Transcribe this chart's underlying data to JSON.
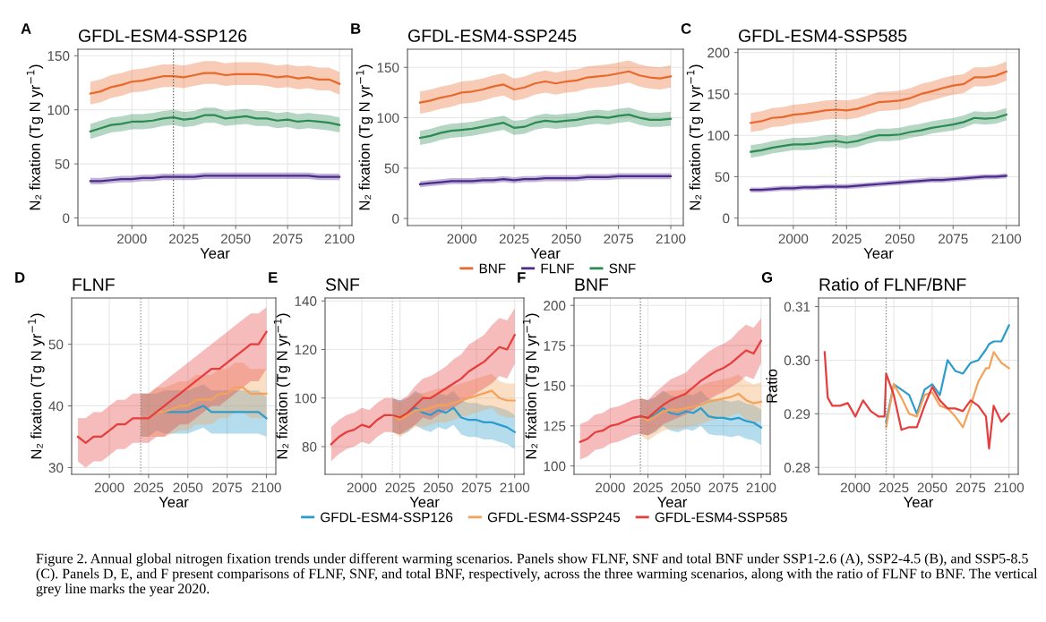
{
  "chart_data": [
    {
      "type": "line",
      "title": "GFDL-ESM4-SSP126",
      "xlabel": "Year",
      "ylabel": "N₂ fixation (Tg N yr$^{−1}$)",
      "annotations": [
        "A"
      ],
      "grid": true,
      "xlim": [
        1974,
        2106
      ],
      "xticks": [
        2000,
        2025,
        2050,
        2075,
        2100
      ],
      "ylim": [
        -7,
        156
      ],
      "yticks": [
        0,
        50,
        100,
        150
      ],
      "ref_lines": [
        {
          "axis": "x",
          "value": 2020,
          "color": "#555555",
          "line_style": "dotted"
        }
      ],
      "x": [
        1980,
        1985,
        1990,
        1995,
        2000,
        2005,
        2010,
        2015,
        2020,
        2025,
        2030,
        2035,
        2040,
        2045,
        2050,
        2055,
        2060,
        2065,
        2070,
        2075,
        2080,
        2085,
        2090,
        2095,
        2100
      ],
      "series": [
        {
          "color": "#e8692c",
          "values": [
            115,
            117,
            121,
            123,
            126,
            127,
            129,
            131,
            131,
            130,
            132,
            134,
            134,
            132,
            133,
            133,
            133,
            132,
            130,
            131,
            129,
            130,
            128,
            128,
            124
          ],
          "lower": [
            105,
            107,
            111,
            113,
            116,
            117,
            119,
            121,
            121,
            120,
            122,
            124,
            124,
            122,
            123,
            123,
            123,
            122,
            120,
            121,
            119,
            120,
            118,
            118,
            114
          ],
          "upper": [
            126,
            128,
            132,
            134,
            137,
            138,
            140,
            142,
            142,
            141,
            143,
            145,
            145,
            143,
            144,
            144,
            144,
            143,
            141,
            142,
            140,
            141,
            139,
            139,
            135
          ]
        },
        {
          "color": "#4b2a8c",
          "values": [
            34,
            34,
            35,
            36,
            36,
            37,
            37,
            38,
            38,
            38,
            38,
            39,
            39,
            39,
            39,
            39,
            39,
            39,
            39,
            39,
            39,
            39,
            38,
            38,
            38
          ],
          "lower": [
            31,
            31,
            32,
            33,
            33,
            34,
            34,
            35,
            35,
            35,
            35,
            36,
            36,
            36,
            36,
            36,
            36,
            36,
            36,
            36,
            36,
            36,
            35,
            35,
            35
          ],
          "upper": [
            37,
            37,
            38,
            39,
            39,
            40,
            40,
            41,
            41,
            41,
            41,
            42,
            42,
            42,
            42,
            42,
            42,
            42,
            42,
            42,
            42,
            42,
            41,
            41,
            41
          ]
        },
        {
          "color": "#2a8a50",
          "values": [
            80,
            83,
            86,
            87,
            89,
            89,
            90,
            92,
            93,
            91,
            92,
            95,
            95,
            92,
            93,
            94,
            92,
            92,
            90,
            91,
            89,
            90,
            89,
            88,
            86
          ],
          "lower": [
            73,
            76,
            79,
            80,
            82,
            82,
            83,
            85,
            86,
            84,
            85,
            88,
            88,
            85,
            86,
            87,
            85,
            85,
            83,
            84,
            82,
            83,
            82,
            81,
            79
          ],
          "upper": [
            87,
            90,
            93,
            94,
            96,
            96,
            97,
            99,
            100,
            98,
            99,
            102,
            102,
            99,
            100,
            101,
            99,
            99,
            97,
            98,
            96,
            97,
            96,
            95,
            93
          ]
        }
      ]
    },
    {
      "type": "line",
      "title": "GFDL-ESM4-SSP245",
      "xlabel": "Year",
      "ylabel": "N₂ fixation (Tg N yr$^{−1}$)",
      "annotations": [
        "B"
      ],
      "grid": true,
      "legend": "bottom",
      "xlim": [
        1974,
        2106
      ],
      "xticks": [
        2000,
        2025,
        2050,
        2075,
        2100
      ],
      "ylim": [
        -7,
        168
      ],
      "yticks": [
        0,
        50,
        100,
        150
      ],
      "x": [
        1980,
        1985,
        1990,
        1995,
        2000,
        2005,
        2010,
        2015,
        2020,
        2025,
        2030,
        2035,
        2040,
        2045,
        2050,
        2055,
        2060,
        2065,
        2070,
        2075,
        2080,
        2085,
        2090,
        2095,
        2100
      ],
      "series": [
        {
          "name": "BNF",
          "color": "#e8692c",
          "values": [
            115,
            117,
            120,
            122,
            125,
            126,
            128,
            131,
            133,
            128,
            130,
            134,
            136,
            134,
            136,
            137,
            140,
            141,
            142,
            144,
            146,
            142,
            140,
            139,
            141
          ],
          "lower": [
            104,
            106,
            109,
            111,
            114,
            115,
            117,
            120,
            122,
            117,
            119,
            123,
            125,
            123,
            125,
            126,
            129,
            130,
            131,
            133,
            135,
            131,
            129,
            128,
            130
          ],
          "upper": [
            126,
            128,
            131,
            133,
            136,
            137,
            139,
            142,
            144,
            139,
            141,
            145,
            147,
            145,
            147,
            148,
            151,
            152,
            153,
            155,
            157,
            153,
            151,
            150,
            152
          ]
        },
        {
          "name": "FLNF",
          "color": "#4b2a8c",
          "values": [
            34,
            35,
            36,
            37,
            37,
            37,
            38,
            38,
            39,
            38,
            39,
            39,
            40,
            40,
            40,
            40,
            41,
            41,
            41,
            42,
            42,
            42,
            42,
            42,
            42
          ],
          "lower": [
            31,
            32,
            33,
            34,
            34,
            34,
            35,
            35,
            36,
            35,
            36,
            36,
            37,
            37,
            37,
            37,
            38,
            38,
            38,
            39,
            39,
            39,
            39,
            39,
            39
          ],
          "upper": [
            37,
            38,
            39,
            40,
            40,
            40,
            41,
            41,
            42,
            41,
            42,
            42,
            43,
            43,
            43,
            43,
            44,
            44,
            44,
            45,
            45,
            45,
            45,
            45,
            45
          ]
        },
        {
          "name": "SNF",
          "color": "#2a8a50",
          "values": [
            80,
            82,
            85,
            87,
            88,
            89,
            91,
            93,
            95,
            90,
            91,
            95,
            97,
            96,
            97,
            98,
            100,
            101,
            100,
            102,
            103,
            100,
            98,
            98,
            99
          ],
          "lower": [
            73,
            75,
            78,
            80,
            81,
            82,
            84,
            86,
            88,
            83,
            84,
            88,
            90,
            89,
            90,
            91,
            93,
            94,
            93,
            95,
            96,
            93,
            91,
            91,
            92
          ],
          "upper": [
            87,
            89,
            92,
            94,
            95,
            96,
            98,
            100,
            102,
            97,
            98,
            102,
            104,
            103,
            104,
            105,
            107,
            108,
            107,
            109,
            110,
            107,
            105,
            105,
            106
          ]
        }
      ]
    },
    {
      "type": "line",
      "title": "GFDL-ESM4-SSP585",
      "xlabel": "Year",
      "ylabel": "N₂ fixation (Tg N yr$^{−1}$)",
      "annotations": [
        "C"
      ],
      "grid": true,
      "xlim": [
        1974,
        2106
      ],
      "xticks": [
        2000,
        2025,
        2050,
        2075,
        2100
      ],
      "ylim": [
        -9,
        204
      ],
      "yticks": [
        0,
        50,
        100,
        150,
        200
      ],
      "ref_lines": [
        {
          "axis": "x",
          "value": 2020,
          "color": "#555555",
          "line_style": "dotted"
        }
      ],
      "x": [
        1980,
        1985,
        1990,
        1995,
        2000,
        2005,
        2010,
        2015,
        2020,
        2025,
        2030,
        2035,
        2040,
        2045,
        2050,
        2055,
        2060,
        2065,
        2070,
        2075,
        2080,
        2085,
        2090,
        2095,
        2100
      ],
      "series": [
        {
          "color": "#e8692c",
          "values": [
            115,
            117,
            121,
            122,
            125,
            126,
            128,
            130,
            131,
            130,
            132,
            136,
            140,
            141,
            142,
            145,
            150,
            153,
            157,
            160,
            162,
            170,
            170,
            172,
            177
          ],
          "lower": [
            104,
            106,
            110,
            111,
            114,
            115,
            117,
            119,
            120,
            119,
            121,
            125,
            129,
            130,
            131,
            134,
            139,
            142,
            146,
            149,
            151,
            159,
            159,
            161,
            166
          ],
          "upper": [
            127,
            129,
            133,
            134,
            137,
            138,
            140,
            142,
            143,
            142,
            144,
            148,
            152,
            153,
            154,
            157,
            162,
            165,
            169,
            172,
            174,
            182,
            182,
            184,
            189
          ]
        },
        {
          "color": "#4b2a8c",
          "values": [
            34,
            34,
            35,
            36,
            36,
            37,
            37,
            38,
            38,
            38,
            39,
            40,
            41,
            42,
            43,
            44,
            45,
            46,
            46,
            47,
            48,
            49,
            50,
            50,
            51
          ],
          "lower": [
            31,
            31,
            32,
            33,
            33,
            34,
            34,
            35,
            35,
            35,
            36,
            37,
            38,
            39,
            40,
            41,
            42,
            43,
            43,
            44,
            45,
            46,
            47,
            47,
            48
          ],
          "upper": [
            37,
            37,
            38,
            39,
            39,
            40,
            40,
            41,
            41,
            41,
            42,
            43,
            44,
            45,
            46,
            47,
            48,
            49,
            49,
            50,
            51,
            52,
            53,
            53,
            54
          ]
        },
        {
          "color": "#2a8a50",
          "values": [
            80,
            82,
            85,
            87,
            89,
            89,
            90,
            92,
            93,
            91,
            93,
            97,
            100,
            100,
            101,
            104,
            106,
            109,
            111,
            113,
            116,
            121,
            120,
            121,
            125
          ],
          "lower": [
            73,
            75,
            78,
            80,
            82,
            82,
            83,
            85,
            86,
            84,
            86,
            90,
            93,
            93,
            94,
            97,
            99,
            102,
            104,
            106,
            109,
            114,
            113,
            114,
            118
          ],
          "upper": [
            88,
            90,
            93,
            95,
            97,
            97,
            98,
            100,
            101,
            99,
            101,
            105,
            108,
            108,
            109,
            112,
            114,
            117,
            119,
            121,
            124,
            129,
            128,
            129,
            133
          ]
        }
      ]
    },
    {
      "type": "line",
      "title": "FLNF",
      "xlabel": "Year",
      "ylabel": "N₂ fixation (Tg N yr$^{−1}$)",
      "annotations": [
        "D"
      ],
      "grid": true,
      "xlim": [
        1976,
        2106
      ],
      "xticks": [
        2000,
        2025,
        2050,
        2075,
        2100
      ],
      "ylim": [
        28.9,
        57.5
      ],
      "yticks": [
        30,
        40,
        50
      ],
      "ref_lines": [
        {
          "axis": "x",
          "value": 2020,
          "color": "#888888",
          "line_style": "dotted"
        }
      ],
      "x": [
        1980,
        1985,
        1990,
        1995,
        2000,
        2005,
        2010,
        2015,
        2020,
        2025,
        2030,
        2035,
        2040,
        2045,
        2050,
        2055,
        2060,
        2065,
        2070,
        2075,
        2080,
        2085,
        2090,
        2095,
        2100
      ],
      "series": [
        {
          "color": "#2b9ccc",
          "values": [
            null,
            null,
            null,
            null,
            null,
            null,
            null,
            null,
            null,
            null,
            null,
            39,
            39,
            39,
            39,
            39.5,
            40,
            39,
            39,
            39,
            39,
            39,
            39,
            39,
            38
          ],
          "lower": [
            null,
            null,
            null,
            null,
            null,
            null,
            null,
            null,
            35,
            35,
            36,
            35.5,
            35.5,
            35.5,
            35.5,
            36,
            36.5,
            35.5,
            35.5,
            35.5,
            35.5,
            35.5,
            35.5,
            35.5,
            35
          ],
          "upper": [
            null,
            null,
            null,
            null,
            null,
            null,
            null,
            null,
            42,
            42,
            42,
            42.5,
            42.5,
            42.5,
            42.5,
            43,
            43.5,
            42.5,
            42.5,
            42.5,
            42.5,
            42.5,
            42.5,
            42.5,
            41.5
          ]
        },
        {
          "color": "#f4a259",
          "values": [
            null,
            null,
            null,
            null,
            null,
            null,
            null,
            null,
            38,
            38,
            39,
            39,
            39.5,
            40,
            40,
            41,
            41,
            41,
            42,
            42,
            43,
            43,
            42,
            42,
            42
          ],
          "lower": [
            null,
            null,
            null,
            null,
            null,
            null,
            null,
            null,
            35,
            35,
            35,
            35,
            35.5,
            36,
            36,
            37,
            37,
            37,
            38,
            38,
            39,
            39,
            38,
            38,
            38
          ],
          "upper": [
            null,
            null,
            null,
            null,
            null,
            null,
            null,
            null,
            42,
            42,
            43,
            43,
            43.5,
            44,
            44,
            45,
            45,
            45,
            46,
            46,
            47,
            47,
            46,
            46,
            46
          ]
        },
        {
          "color": "#e63d3d",
          "values": [
            35,
            34,
            35,
            35,
            36,
            37,
            37,
            38,
            38,
            38,
            39,
            40,
            41,
            42,
            43,
            44,
            45,
            46,
            46,
            47,
            48,
            49,
            50,
            50,
            52
          ],
          "lower": [
            31,
            30,
            31,
            31,
            32,
            33,
            33,
            34,
            34,
            34,
            35,
            35,
            36,
            37,
            37,
            38,
            39,
            40,
            40,
            41,
            42,
            43,
            44,
            44,
            46
          ],
          "upper": [
            38,
            38,
            39,
            39,
            40,
            41,
            41,
            42,
            42,
            42,
            43,
            44,
            45,
            46,
            47,
            48,
            49,
            50,
            51,
            52,
            53,
            54,
            55,
            55,
            56
          ]
        }
      ]
    },
    {
      "type": "line",
      "title": "SNF",
      "xlabel": "Year",
      "ylabel": "N₂ fixation (Tg N yr$^{−1}$)",
      "annotations": [
        "E"
      ],
      "grid": true,
      "legend": "bottom",
      "xlim": [
        1976,
        2106
      ],
      "xticks": [
        2000,
        2025,
        2050,
        2075,
        2100
      ],
      "ylim": [
        68.6,
        141.2
      ],
      "yticks": [
        80,
        100,
        120,
        140
      ],
      "ref_lines": [
        {
          "axis": "x",
          "value": 2020,
          "color": "#bbbbbb",
          "line_style": "dotted"
        }
      ],
      "x": [
        1980,
        1985,
        1990,
        1995,
        2000,
        2005,
        2010,
        2015,
        2020,
        2025,
        2030,
        2035,
        2040,
        2045,
        2050,
        2055,
        2060,
        2065,
        2070,
        2075,
        2080,
        2085,
        2090,
        2095,
        2100
      ],
      "series": [
        {
          "name": "GFDL-ESM4-SSP126",
          "color": "#2b9ccc",
          "values": [
            null,
            null,
            null,
            null,
            null,
            null,
            null,
            null,
            null,
            null,
            93,
            96,
            94,
            93,
            95,
            94,
            96,
            92,
            91,
            91,
            90,
            90,
            89,
            88,
            86
          ],
          "lower": [
            null,
            null,
            null,
            null,
            null,
            null,
            null,
            null,
            86,
            85,
            86,
            89,
            87,
            86,
            88,
            87,
            89,
            85,
            84,
            84,
            83,
            83,
            82,
            81,
            79
          ],
          "upper": [
            null,
            null,
            null,
            null,
            null,
            null,
            null,
            null,
            100,
            99,
            100,
            103,
            101,
            100,
            102,
            101,
            103,
            99,
            98,
            98,
            97,
            97,
            96,
            95,
            93
          ]
        },
        {
          "name": "GFDL-ESM4-SSP245",
          "color": "#f4a259",
          "values": [
            null,
            null,
            null,
            null,
            null,
            null,
            null,
            null,
            93,
            91,
            93,
            95,
            95,
            96,
            97,
            97,
            98,
            99,
            100,
            101,
            102,
            103,
            100,
            99,
            99
          ],
          "lower": [
            null,
            null,
            null,
            null,
            null,
            null,
            null,
            null,
            86,
            84,
            86,
            88,
            88,
            89,
            90,
            90,
            91,
            92,
            93,
            94,
            95,
            96,
            93,
            92,
            92
          ],
          "upper": [
            null,
            null,
            null,
            null,
            null,
            null,
            null,
            null,
            100,
            98,
            100,
            102,
            102,
            103,
            104,
            104,
            105,
            106,
            107,
            108,
            109,
            110,
            107,
            106,
            106
          ]
        },
        {
          "name": "GFDL-ESM4-SSP585",
          "color": "#e63d3d",
          "values": [
            81,
            84,
            86,
            87,
            89,
            88,
            91,
            93,
            93,
            92,
            94,
            97,
            100,
            100,
            102,
            104,
            106,
            108,
            111,
            113,
            115,
            118,
            121,
            120,
            126
          ],
          "lower": [
            74,
            77,
            79,
            80,
            82,
            81,
            84,
            86,
            86,
            85,
            87,
            89,
            92,
            91,
            93,
            95,
            96,
            98,
            100,
            102,
            104,
            106,
            109,
            108,
            114
          ],
          "upper": [
            88,
            91,
            93,
            94,
            96,
            95,
            98,
            100,
            100,
            99,
            101,
            105,
            108,
            109,
            111,
            113,
            116,
            118,
            122,
            124,
            126,
            130,
            133,
            132,
            137
          ]
        }
      ]
    },
    {
      "type": "line",
      "title": "BNF",
      "xlabel": "Year",
      "ylabel": "N₂ fixation (Tg N yr$^{−1}$)",
      "annotations": [
        "F"
      ],
      "grid": true,
      "xlim": [
        1976,
        2106
      ],
      "xticks": [
        2000,
        2025,
        2050,
        2075,
        2100
      ],
      "ylim": [
        94.8,
        204.6
      ],
      "yticks": [
        100,
        125,
        150,
        175,
        200
      ],
      "ref_lines": [
        {
          "axis": "x",
          "value": 2020,
          "color": "#777777",
          "line_style": "dotted"
        }
      ],
      "x": [
        1980,
        1985,
        1990,
        1995,
        2000,
        2005,
        2010,
        2015,
        2020,
        2025,
        2030,
        2035,
        2040,
        2045,
        2050,
        2055,
        2060,
        2065,
        2070,
        2075,
        2080,
        2085,
        2090,
        2095,
        2100
      ],
      "series": [
        {
          "color": "#2b9ccc",
          "values": [
            null,
            null,
            null,
            null,
            null,
            null,
            null,
            null,
            131,
            130,
            132,
            136,
            133,
            132,
            134,
            133,
            136,
            131,
            130,
            130,
            129,
            130,
            128,
            127,
            124
          ],
          "lower": [
            null,
            null,
            null,
            null,
            null,
            null,
            null,
            null,
            120,
            119,
            121,
            125,
            122,
            121,
            123,
            122,
            125,
            120,
            119,
            119,
            118,
            119,
            117,
            116,
            113
          ],
          "upper": [
            null,
            null,
            null,
            null,
            null,
            null,
            null,
            null,
            142,
            141,
            143,
            147,
            144,
            143,
            145,
            144,
            147,
            142,
            141,
            141,
            140,
            141,
            139,
            138,
            135
          ]
        },
        {
          "color": "#f4a259",
          "values": [
            null,
            null,
            null,
            null,
            null,
            null,
            null,
            null,
            131,
            128,
            131,
            134,
            135,
            135,
            136,
            137,
            138,
            140,
            141,
            142,
            143,
            145,
            141,
            139,
            140
          ],
          "lower": [
            null,
            null,
            null,
            null,
            null,
            null,
            null,
            null,
            119,
            116,
            119,
            122,
            123,
            123,
            124,
            125,
            126,
            128,
            129,
            130,
            131,
            133,
            129,
            127,
            128
          ],
          "upper": [
            null,
            null,
            null,
            null,
            null,
            null,
            null,
            null,
            143,
            140,
            143,
            146,
            147,
            147,
            148,
            149,
            150,
            152,
            153,
            154,
            155,
            157,
            153,
            151,
            152
          ]
        },
        {
          "color": "#e63d3d",
          "values": [
            115,
            117,
            121,
            122,
            125,
            126,
            128,
            130,
            131,
            130,
            134,
            138,
            141,
            143,
            145,
            149,
            153,
            156,
            159,
            161,
            164,
            168,
            172,
            170,
            178
          ],
          "lower": [
            104,
            106,
            110,
            111,
            114,
            115,
            117,
            119,
            120,
            119,
            122,
            126,
            128,
            130,
            132,
            135,
            139,
            141,
            144,
            146,
            149,
            152,
            156,
            154,
            164
          ],
          "upper": [
            126,
            128,
            132,
            133,
            136,
            137,
            139,
            141,
            142,
            141,
            146,
            150,
            154,
            156,
            158,
            163,
            167,
            171,
            174,
            176,
            179,
            184,
            188,
            186,
            192
          ]
        }
      ]
    },
    {
      "type": "line",
      "title": "Ratio of FLNF/BNF",
      "xlabel": "Year",
      "ylabel": "Ratio",
      "annotations": [
        "G",
        "Figure 2. Annual global nitrogen fixation trends under different warming scenarios. Panels show FLNF, SNF and total BNF under SSP1-2.6 (A), SSP2-4.5 (B), and SSP5-8.5 (C). Panels D, E, and F present comparisons of FLNF, SNF, and total BNF, respectively, across the three warming scenarios, along with the ratio of FLNF to BNF. The vertical grey line marks the year 2020."
      ],
      "grid": true,
      "xlim": [
        1976,
        2106
      ],
      "xticks": [
        2000,
        2025,
        2050,
        2075,
        2100
      ],
      "ylim": [
        0.2787,
        0.3116
      ],
      "yticks": [
        0.28,
        0.29,
        {
          "value": 0.3,
          "label": "0.30"
        },
        0.31
      ],
      "ref_lines": [
        {
          "axis": "x",
          "value": 2020,
          "color": "#777777",
          "line_style": "dotted"
        }
      ],
      "x": [
        1980,
        1982,
        1985,
        1990,
        1995,
        2000,
        2005,
        2010,
        2015,
        2019,
        2020,
        2025,
        2030,
        2035,
        2040,
        2045,
        2050,
        2055,
        2060,
        2065,
        2070,
        2075,
        2080,
        2085,
        2087,
        2090,
        2095,
        2100
      ],
      "series": [
        {
          "color": "#2b9ccc",
          "values": [
            null,
            null,
            null,
            null,
            null,
            null,
            null,
            null,
            null,
            null,
            0.2885,
            0.2955,
            0.2945,
            0.2935,
            0.29,
            0.2945,
            0.2955,
            0.2935,
            0.3,
            0.298,
            0.2975,
            0.2995,
            0.3,
            0.302,
            0.303,
            0.3035,
            0.3035,
            0.3065
          ]
        },
        {
          "color": "#f4a259",
          "values": [
            null,
            null,
            null,
            null,
            null,
            null,
            null,
            null,
            null,
            null,
            0.2875,
            0.2955,
            0.293,
            0.29,
            0.2895,
            0.2935,
            0.294,
            0.2915,
            0.291,
            0.2895,
            0.2875,
            0.2915,
            0.296,
            0.2985,
            0.2985,
            0.3015,
            0.2995,
            0.2985
          ]
        },
        {
          "color": "#e63d3d",
          "values": [
            0.3015,
            0.293,
            0.2915,
            0.2915,
            0.292,
            0.2895,
            0.2925,
            0.2905,
            0.2895,
            0.2895,
            0.2975,
            0.2935,
            0.287,
            0.2875,
            0.2875,
            0.2915,
            0.295,
            0.2925,
            0.291,
            0.291,
            0.2905,
            0.2925,
            0.2915,
            0.2895,
            0.2835,
            0.2915,
            0.2885,
            0.29
          ]
        }
      ]
    }
  ]
}
